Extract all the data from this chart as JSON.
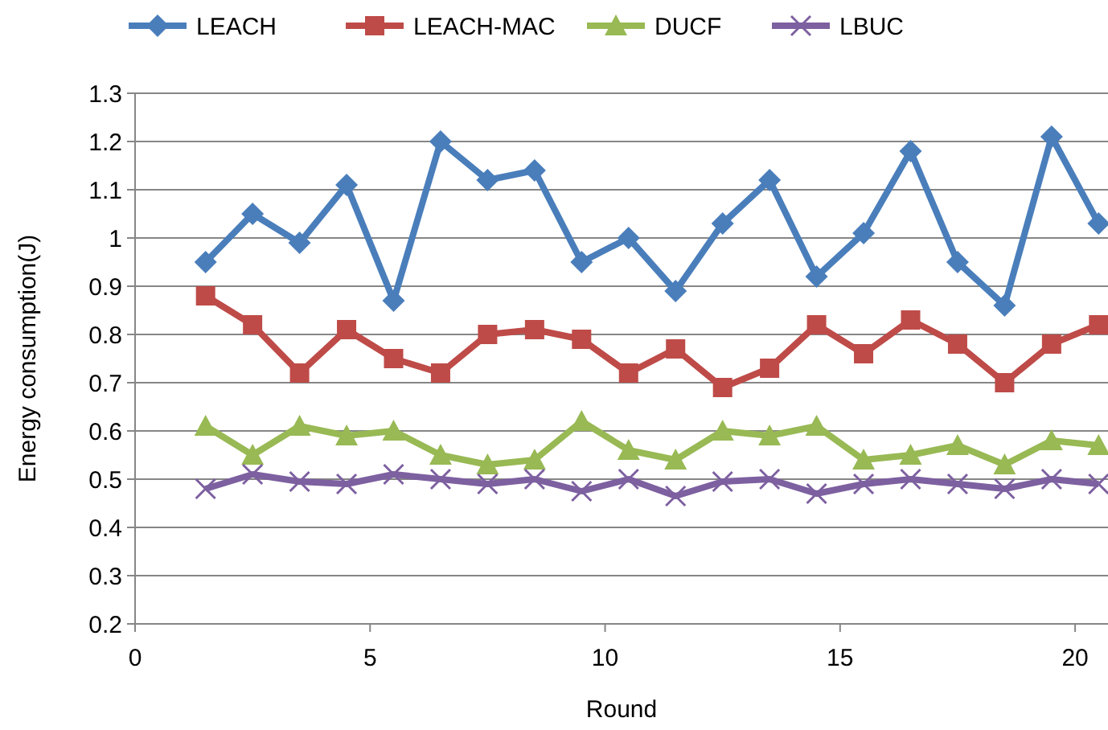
{
  "chart_data": {
    "type": "line",
    "xlabel": "Round",
    "ylabel": "Energy consumption(J)",
    "x": [
      1.5,
      2.5,
      3.5,
      4.5,
      5.5,
      6.5,
      7.5,
      8.5,
      9.5,
      10.5,
      11.5,
      12.5,
      13.5,
      14.5,
      15.5,
      16.5,
      17.5,
      18.5,
      19.5,
      20.5
    ],
    "series": [
      {
        "name": "LEACH",
        "color": "#4a7ebb",
        "marker": "diamond",
        "values": [
          0.95,
          1.05,
          0.99,
          1.11,
          0.87,
          1.2,
          1.12,
          1.14,
          0.95,
          1.0,
          0.89,
          1.03,
          1.12,
          0.92,
          1.01,
          1.18,
          0.95,
          0.86,
          1.21,
          1.03
        ]
      },
      {
        "name": "LEACH-MAC",
        "color": "#be4b48",
        "marker": "square",
        "values": [
          0.88,
          0.82,
          0.72,
          0.81,
          0.75,
          0.72,
          0.8,
          0.81,
          0.79,
          0.72,
          0.77,
          0.69,
          0.73,
          0.82,
          0.76,
          0.83,
          0.78,
          0.7,
          0.78,
          0.82
        ]
      },
      {
        "name": "DUCF",
        "color": "#98b954",
        "marker": "triangle",
        "values": [
          0.61,
          0.55,
          0.61,
          0.59,
          0.6,
          0.55,
          0.53,
          0.54,
          0.62,
          0.56,
          0.54,
          0.6,
          0.59,
          0.61,
          0.54,
          0.55,
          0.57,
          0.53,
          0.58,
          0.57
        ]
      },
      {
        "name": "LBUC",
        "color": "#7d60a0",
        "marker": "cross",
        "values": [
          0.48,
          0.51,
          0.495,
          0.49,
          0.51,
          0.5,
          0.49,
          0.5,
          0.475,
          0.5,
          0.465,
          0.495,
          0.5,
          0.47,
          0.49,
          0.5,
          0.49,
          0.48,
          0.5,
          0.49
        ]
      }
    ],
    "xlim": [
      0,
      20.7
    ],
    "xticks": [
      0,
      5,
      10,
      15,
      20
    ],
    "ylim": [
      0.2,
      1.3
    ],
    "yticks": [
      {
        "value": 0.2,
        "label": "0.2"
      },
      {
        "value": 0.3,
        "label": "0.3"
      },
      {
        "value": 0.4,
        "label": "0.4"
      },
      {
        "value": 0.5,
        "label": "0.5"
      },
      {
        "value": 0.6,
        "label": "0.6"
      },
      {
        "value": 0.7,
        "label": "0.7"
      },
      {
        "value": 0.8,
        "label": "0.8"
      },
      {
        "value": 0.9,
        "label": "0.9"
      },
      {
        "value": 1,
        "label": "1"
      },
      {
        "value": 1.1,
        "label": "1.1"
      },
      {
        "value": 1.2,
        "label": "1.2"
      },
      {
        "value": 1.3,
        "label": "1.3"
      }
    ],
    "grid": "y",
    "legend": "top",
    "line_style": "solid"
  }
}
